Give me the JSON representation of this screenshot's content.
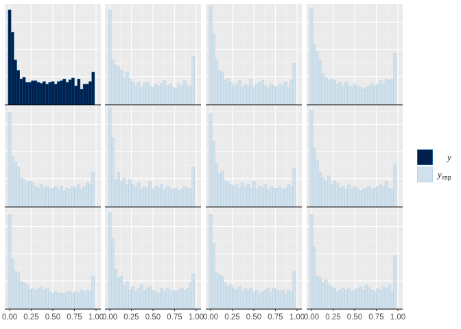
{
  "chart_data": {
    "type": "bar",
    "title": "",
    "xlabel": "",
    "ylabel": "",
    "layout": {
      "rows": 3,
      "cols": 4
    },
    "xlim": [
      0,
      1
    ],
    "x_ticks": [
      0,
      0.25,
      0.5,
      0.75,
      1
    ],
    "x_tick_labels": [
      "0.00",
      "0.25",
      "0.50",
      "0.75",
      "1.00"
    ],
    "bin_count": 30,
    "y_max": 115,
    "colors": {
      "y_fill": "#011f4b",
      "y_stroke": "#005b96",
      "yrep_fill": "#d1e1ec",
      "yrep_stroke": "#b3cde0",
      "panel_bg": "#ebebeb",
      "grid_major": "#ffffff",
      "grid_minor": "#f5f5f5",
      "axis_line": "#000000"
    },
    "legend": {
      "position": "right",
      "entries": [
        {
          "key": "y",
          "label": "y",
          "sub": ""
        },
        {
          "key": "yrep",
          "label": "y",
          "sub": "rep"
        }
      ]
    },
    "panels": [
      {
        "series": "y",
        "values": [
          110,
          84,
          52,
          40,
          30,
          32,
          26,
          26,
          28,
          28,
          26,
          25,
          27,
          24,
          26,
          27,
          24,
          27,
          28,
          30,
          26,
          29,
          31,
          22,
          30,
          18,
          24,
          24,
          27,
          38
        ]
      },
      {
        "series": "yrep",
        "values": [
          110,
          52,
          46,
          44,
          40,
          32,
          38,
          30,
          26,
          22,
          26,
          20,
          24,
          26,
          22,
          20,
          24,
          22,
          25,
          28,
          22,
          24,
          20,
          18,
          24,
          22,
          28,
          22,
          22,
          56
        ]
      },
      {
        "series": "yrep",
        "values": [
          150,
          82,
          52,
          40,
          38,
          28,
          30,
          26,
          22,
          24,
          28,
          20,
          24,
          22,
          30,
          20,
          24,
          26,
          28,
          22,
          20,
          24,
          22,
          20,
          24,
          22,
          26,
          20,
          28,
          48
        ]
      },
      {
        "series": "yrep",
        "values": [
          112,
          70,
          62,
          52,
          36,
          32,
          28,
          30,
          28,
          24,
          26,
          22,
          26,
          22,
          20,
          24,
          22,
          20,
          18,
          20,
          22,
          24,
          22,
          24,
          28,
          24,
          30,
          28,
          30,
          60
        ]
      },
      {
        "series": "yrep",
        "values": [
          110,
          58,
          52,
          46,
          34,
          32,
          28,
          30,
          28,
          24,
          22,
          26,
          22,
          24,
          20,
          22,
          24,
          20,
          24,
          18,
          22,
          20,
          24,
          22,
          26,
          20,
          24,
          28,
          26,
          40
        ]
      },
      {
        "series": "yrep",
        "values": [
          116,
          80,
          32,
          40,
          30,
          34,
          26,
          32,
          26,
          24,
          28,
          20,
          24,
          22,
          30,
          20,
          24,
          22,
          26,
          20,
          24,
          22,
          20,
          22,
          18,
          20,
          24,
          22,
          20,
          46
        ]
      },
      {
        "series": "yrep",
        "values": [
          108,
          76,
          50,
          38,
          42,
          30,
          28,
          26,
          24,
          26,
          22,
          28,
          24,
          26,
          22,
          30,
          20,
          24,
          22,
          26,
          20,
          24,
          22,
          22,
          24,
          20,
          22,
          26,
          24,
          45
        ]
      },
      {
        "series": "yrep",
        "values": [
          112,
          68,
          54,
          40,
          34,
          30,
          36,
          26,
          30,
          28,
          22,
          24,
          20,
          26,
          20,
          24,
          22,
          18,
          20,
          22,
          24,
          20,
          22,
          24,
          26,
          24,
          30,
          22,
          20,
          50
        ]
      },
      {
        "series": "yrep",
        "values": [
          110,
          58,
          44,
          42,
          32,
          30,
          28,
          22,
          24,
          22,
          24,
          26,
          22,
          24,
          20,
          18,
          20,
          18,
          19,
          18,
          20,
          20,
          18,
          20,
          18,
          22,
          20,
          22,
          20,
          38
        ]
      },
      {
        "series": "yrep",
        "values": [
          112,
          82,
          46,
          36,
          38,
          28,
          32,
          22,
          26,
          20,
          24,
          28,
          22,
          24,
          26,
          22,
          20,
          18,
          24,
          20,
          24,
          20,
          22,
          20,
          22,
          24,
          22,
          24,
          30,
          40
        ]
      },
      {
        "series": "yrep",
        "values": [
          110,
          76,
          42,
          40,
          38,
          30,
          26,
          28,
          24,
          22,
          26,
          20,
          24,
          22,
          24,
          20,
          22,
          18,
          20,
          22,
          24,
          20,
          24,
          22,
          20,
          22,
          18,
          22,
          20,
          44
        ]
      },
      {
        "series": "yrep",
        "values": [
          110,
          72,
          38,
          36,
          30,
          34,
          28,
          26,
          24,
          20,
          22,
          24,
          22,
          24,
          20,
          22,
          24,
          26,
          22,
          28,
          26,
          22,
          20,
          24,
          22,
          26,
          24,
          28,
          20,
          62
        ]
      }
    ]
  }
}
